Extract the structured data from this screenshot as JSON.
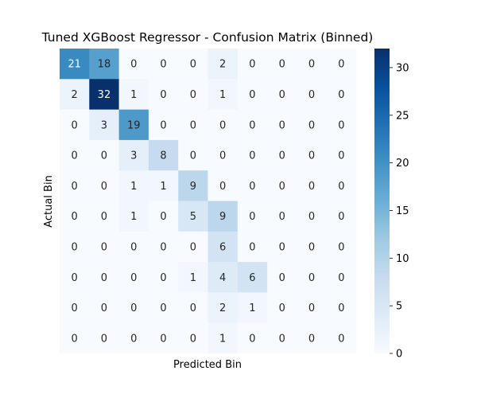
{
  "chart_data": {
    "type": "heatmap",
    "title": "Tuned XGBoost Regressor - Confusion Matrix (Binned)",
    "xlabel": "Predicted Bin",
    "ylabel": "Actual Bin",
    "rows": 10,
    "cols": 10,
    "matrix": [
      [
        21,
        18,
        0,
        0,
        0,
        2,
        0,
        0,
        0,
        0
      ],
      [
        2,
        32,
        1,
        0,
        0,
        1,
        0,
        0,
        0,
        0
      ],
      [
        0,
        3,
        19,
        0,
        0,
        0,
        0,
        0,
        0,
        0
      ],
      [
        0,
        0,
        3,
        8,
        0,
        0,
        0,
        0,
        0,
        0
      ],
      [
        0,
        0,
        1,
        1,
        9,
        0,
        0,
        0,
        0,
        0
      ],
      [
        0,
        0,
        1,
        0,
        5,
        9,
        0,
        0,
        0,
        0
      ],
      [
        0,
        0,
        0,
        0,
        0,
        6,
        0,
        0,
        0,
        0
      ],
      [
        0,
        0,
        0,
        0,
        1,
        4,
        6,
        0,
        0,
        0
      ],
      [
        0,
        0,
        0,
        0,
        0,
        2,
        1,
        0,
        0,
        0
      ],
      [
        0,
        0,
        0,
        0,
        0,
        1,
        0,
        0,
        0,
        0
      ]
    ],
    "colorbar": {
      "colormap": "Blues",
      "range": [
        0,
        32
      ],
      "ticks": [
        0,
        5,
        10,
        15,
        20,
        25,
        30
      ]
    },
    "annotations": true,
    "x_tick_labels_visible": false,
    "y_tick_labels_visible": false
  }
}
